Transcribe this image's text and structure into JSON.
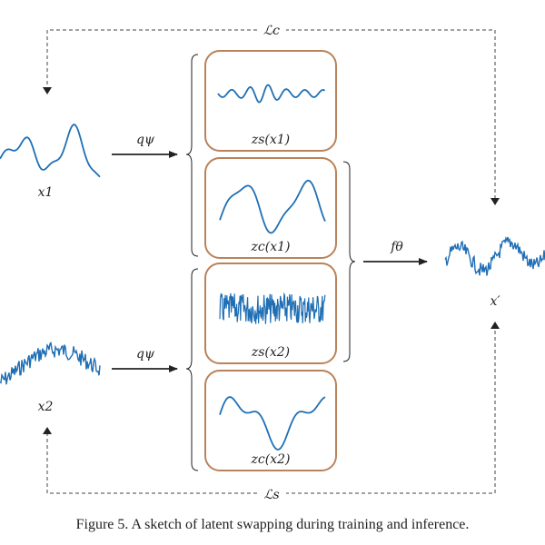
{
  "diagram": {
    "labels": {
      "loss_c": "ℒc",
      "loss_s": "ℒs",
      "q_top": "qψ",
      "q_bottom": "qψ",
      "f": "fθ",
      "x1": "x1",
      "x2": "x2",
      "x_prime": "x′",
      "zs_x1": "zs(x1)",
      "zc_x1": "zc(x1)",
      "zs_x2": "zs(x2)",
      "zc_x2": "zc(x2)"
    },
    "colors": {
      "signal": "#1f6fb5",
      "box_border": "#b9825a",
      "line": "#222222"
    }
  },
  "caption": "Figure 5. A sketch of latent swapping during training and inference."
}
